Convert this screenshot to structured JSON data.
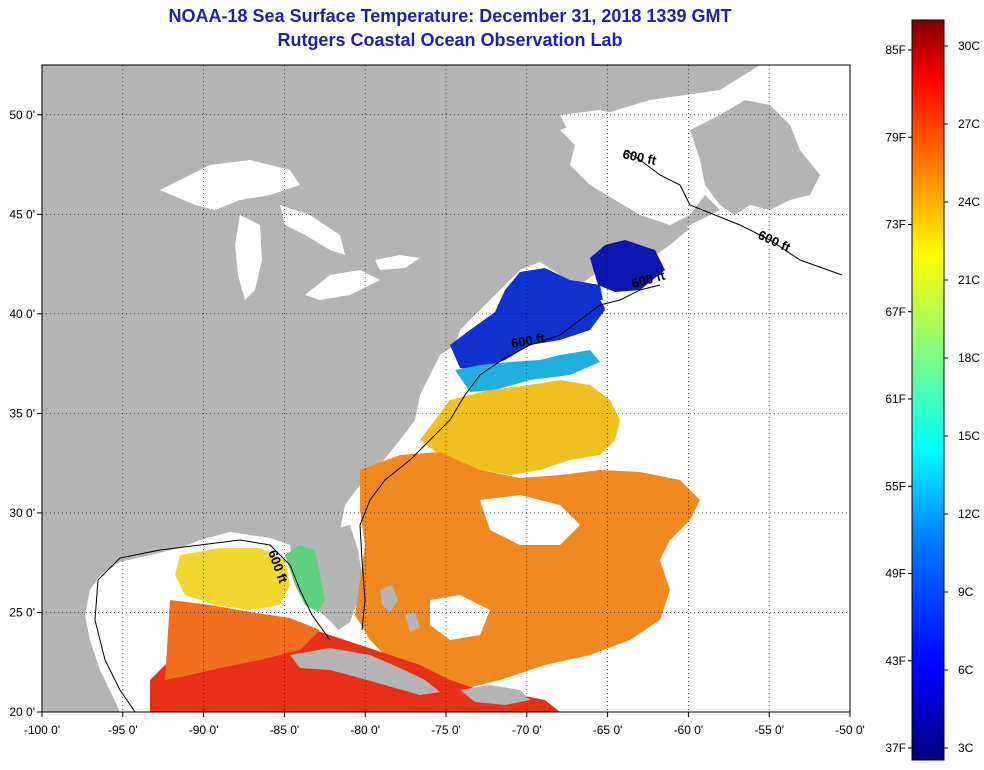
{
  "title": "NOAA-18 Sea Surface Temperature:  December 31, 2018 1339 GMT",
  "subtitle": "Rutgers Coastal Ocean Observation Lab",
  "map": {
    "lon_range": [
      -100,
      -50
    ],
    "lat_range": [
      20,
      52.5
    ],
    "x_ticks": [
      "-100 0'",
      "-95 0'",
      "-90 0'",
      "-85 0'",
      "-80 0'",
      "-75 0'",
      "-70 0'",
      "-65 0'",
      "-60 0'",
      "-55 0'",
      "-50 0'"
    ],
    "y_ticks": [
      "50 0'",
      "45 0'",
      "40 0'",
      "35 0'",
      "30 0'",
      "25 0'",
      "20 0'"
    ],
    "contour_labels": [
      "600 ft",
      "600 ft",
      "600 ft",
      "600 ft",
      "600 ft"
    ],
    "land_color": "#b4b4b4",
    "cloud_color": "#ffffff"
  },
  "colorbar": {
    "f_labels": [
      "85F",
      "79F",
      "73F",
      "67F",
      "61F",
      "55F",
      "49F",
      "43F",
      "37F"
    ],
    "c_labels": [
      "30C",
      "27C",
      "24C",
      "21C",
      "18C",
      "15C",
      "12C",
      "9C",
      "6C",
      "3C"
    ],
    "range_c": [
      3,
      31
    ],
    "colors": [
      "#00007f",
      "#0000ff",
      "#007fff",
      "#00ffff",
      "#7fff7f",
      "#ffff00",
      "#ff7f00",
      "#ff0000",
      "#7f0000"
    ]
  }
}
